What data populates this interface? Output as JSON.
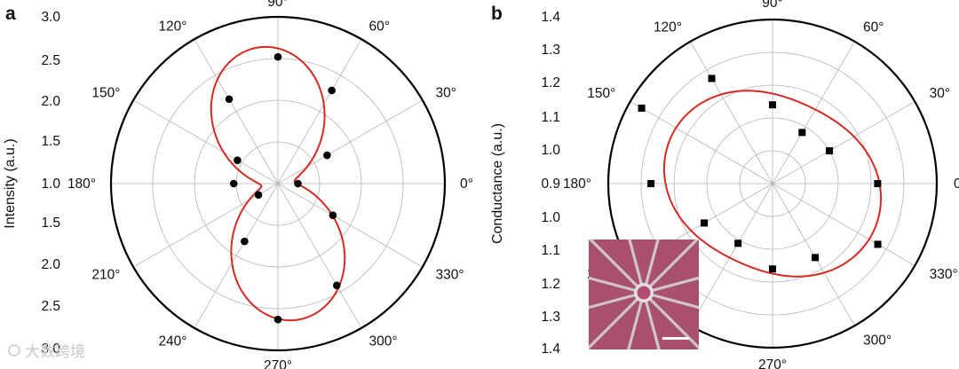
{
  "figure": {
    "watermark": "大数跨境"
  },
  "chart_data": [
    {
      "type": "scatter",
      "coordinate_system": "polar",
      "panel_label": "a",
      "ylabel": "Intensity (a.u.)",
      "radial_range": [
        1.0,
        3.0
      ],
      "radial_ticks_upper": [
        "3.0",
        "2.5",
        "2.0",
        "1.5",
        "1.0"
      ],
      "radial_ticks_lower": [
        "1.5",
        "2.0",
        "2.5",
        "3.0"
      ],
      "angle_labels": [
        "0°",
        "30°",
        "60°",
        "90°",
        "120°",
        "150°",
        "180°",
        "210°",
        "240°",
        "270°",
        "300°",
        "330°"
      ],
      "grid": true,
      "series": [
        {
          "name": "measured",
          "marker": "circle",
          "color": "#000000",
          "points": [
            {
              "angle": 0,
              "value": 1.24
            },
            {
              "angle": 30,
              "value": 1.68
            },
            {
              "angle": 60,
              "value": 2.29
            },
            {
              "angle": 90,
              "value": 2.52
            },
            {
              "angle": 120,
              "value": 2.17
            },
            {
              "angle": 150,
              "value": 1.56
            },
            {
              "angle": 180,
              "value": 1.53
            },
            {
              "angle": 210,
              "value": 1.27
            },
            {
              "angle": 240,
              "value": 1.8
            },
            {
              "angle": 270,
              "value": 2.63
            },
            {
              "angle": 300,
              "value": 2.41
            },
            {
              "angle": 330,
              "value": 1.76
            }
          ]
        },
        {
          "name": "fit",
          "type": "line",
          "color": "#d42a22",
          "model": "dipole",
          "base": 1.2,
          "amplitude": 1.45,
          "phase_deg": 98
        }
      ]
    },
    {
      "type": "scatter",
      "coordinate_system": "polar",
      "panel_label": "b",
      "ylabel": "Conductance (a.u.)",
      "radial_range": [
        0.9,
        1.4
      ],
      "radial_ticks_upper": [
        "1.4",
        "1.3",
        "1.2",
        "1.1",
        "1.0",
        "0.9"
      ],
      "radial_ticks_lower": [
        "1.0",
        "1.1",
        "1.2",
        "1.3",
        "1.4"
      ],
      "angle_labels": [
        "0°",
        "30°",
        "60°",
        "90°",
        "120°",
        "150°",
        "180°",
        "210°",
        "240°",
        "270°",
        "300°",
        "330°"
      ],
      "grid": true,
      "inset": "optical micrograph of radial electrode device with scale bar",
      "series": [
        {
          "name": "measured",
          "marker": "square",
          "color": "#000000",
          "points": [
            {
              "angle": 0,
              "value": 1.22
            },
            {
              "angle": 30,
              "value": 1.1
            },
            {
              "angle": 60,
              "value": 1.08
            },
            {
              "angle": 90,
              "value": 1.14
            },
            {
              "angle": 120,
              "value": 1.27
            },
            {
              "angle": 150,
              "value": 1.36
            },
            {
              "angle": 180,
              "value": 1.27
            },
            {
              "angle": 210,
              "value": 1.14
            },
            {
              "angle": 240,
              "value": 1.11
            },
            {
              "angle": 270,
              "value": 1.16
            },
            {
              "angle": 300,
              "value": 1.16
            },
            {
              "angle": 330,
              "value": 1.27
            }
          ]
        },
        {
          "name": "fit",
          "type": "line",
          "color": "#d42a22",
          "model": "dipole",
          "base": 1.16,
          "amplitude": 0.08,
          "phase_deg": 155
        }
      ]
    }
  ]
}
